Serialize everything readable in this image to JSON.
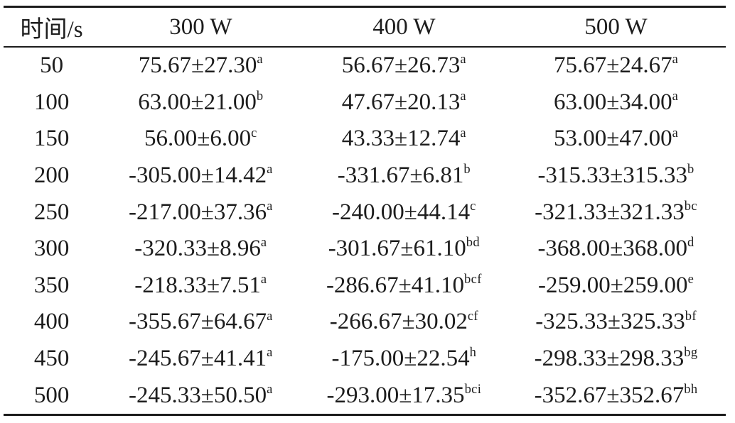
{
  "page": {
    "background": "#ffffff",
    "text_color": "#1d1d1d",
    "rule_color": "#1c1c1c"
  },
  "table": {
    "columns": [
      "时间/s",
      "300 W",
      "400 W",
      "500 W"
    ],
    "rows": [
      {
        "time": "50",
        "cells": [
          {
            "text": "75.67±27.30",
            "sup": "a"
          },
          {
            "text": "56.67±26.73",
            "sup": "a"
          },
          {
            "text": "75.67±24.67",
            "sup": "a"
          }
        ]
      },
      {
        "time": "100",
        "cells": [
          {
            "text": "63.00±21.00",
            "sup": "b"
          },
          {
            "text": "47.67±20.13",
            "sup": "a"
          },
          {
            "text": "63.00±34.00",
            "sup": "a"
          }
        ]
      },
      {
        "time": "150",
        "cells": [
          {
            "text": "56.00±6.00",
            "sup": "c"
          },
          {
            "text": "43.33±12.74",
            "sup": "a"
          },
          {
            "text": "53.00±47.00",
            "sup": "a"
          }
        ]
      },
      {
        "time": "200",
        "cells": [
          {
            "text": "-305.00±14.42",
            "sup": "a"
          },
          {
            "text": "-331.67±6.81",
            "sup": "b"
          },
          {
            "text": "-315.33±315.33",
            "sup": "b"
          }
        ]
      },
      {
        "time": "250",
        "cells": [
          {
            "text": "-217.00±37.36",
            "sup": "a"
          },
          {
            "text": "-240.00±44.14",
            "sup": "c"
          },
          {
            "text": "-321.33±321.33",
            "sup": "bc"
          }
        ]
      },
      {
        "time": "300",
        "cells": [
          {
            "text": "-320.33±8.96",
            "sup": "a"
          },
          {
            "text": "-301.67±61.10",
            "sup": "bd"
          },
          {
            "text": "-368.00±368.00",
            "sup": "d"
          }
        ]
      },
      {
        "time": "350",
        "cells": [
          {
            "text": "-218.33±7.51",
            "sup": "a"
          },
          {
            "text": "-286.67±41.10",
            "sup": "bcf"
          },
          {
            "text": "-259.00±259.00",
            "sup": "e"
          }
        ]
      },
      {
        "time": "400",
        "cells": [
          {
            "text": "-355.67±64.67",
            "sup": "a"
          },
          {
            "text": "-266.67±30.02",
            "sup": "cf"
          },
          {
            "text": "-325.33±325.33",
            "sup": "bf"
          }
        ]
      },
      {
        "time": "450",
        "cells": [
          {
            "text": "-245.67±41.41",
            "sup": "a"
          },
          {
            "text": "-175.00±22.54",
            "sup": "h"
          },
          {
            "text": "-298.33±298.33",
            "sup": "bg"
          }
        ]
      },
      {
        "time": "500",
        "cells": [
          {
            "text": "-245.33±50.50",
            "sup": "a"
          },
          {
            "text": "-293.00±17.35",
            "sup": "bci"
          },
          {
            "text": "-352.67±352.67",
            "sup": "bh"
          }
        ]
      }
    ]
  },
  "chart_data": {
    "type": "table",
    "columns": [
      "时间/s",
      "300 W",
      "400 W",
      "500 W"
    ],
    "x_label": "时间/s",
    "times_s": [
      50,
      100,
      150,
      200,
      250,
      300,
      350,
      400,
      450,
      500
    ],
    "series": [
      {
        "name": "300 W",
        "mean": [
          75.67,
          63.0,
          56.0,
          -305.0,
          -217.0,
          -320.33,
          -218.33,
          -355.67,
          -245.67,
          -245.33
        ],
        "sd": [
          27.3,
          21.0,
          6.0,
          14.42,
          37.36,
          8.96,
          7.51,
          64.67,
          41.41,
          50.5
        ],
        "significance": [
          "a",
          "b",
          "c",
          "a",
          "a",
          "a",
          "a",
          "a",
          "a",
          "a"
        ]
      },
      {
        "name": "400 W",
        "mean": [
          56.67,
          47.67,
          43.33,
          -331.67,
          -240.0,
          -301.67,
          -286.67,
          -266.67,
          -175.0,
          -293.0
        ],
        "sd": [
          26.73,
          20.13,
          12.74,
          6.81,
          44.14,
          61.1,
          41.1,
          30.02,
          22.54,
          17.35
        ],
        "significance": [
          "a",
          "a",
          "a",
          "b",
          "c",
          "bd",
          "bcf",
          "cf",
          "h",
          "bci"
        ]
      },
      {
        "name": "500 W",
        "mean": [
          75.67,
          63.0,
          53.0,
          -315.33,
          -321.33,
          -368.0,
          -259.0,
          -325.33,
          -298.33,
          -352.67
        ],
        "sd": [
          24.67,
          34.0,
          47.0,
          315.33,
          321.33,
          368.0,
          259.0,
          325.33,
          298.33,
          352.67
        ],
        "significance": [
          "a",
          "a",
          "a",
          "b",
          "bc",
          "d",
          "e",
          "bf",
          "bg",
          "bh"
        ]
      }
    ]
  }
}
